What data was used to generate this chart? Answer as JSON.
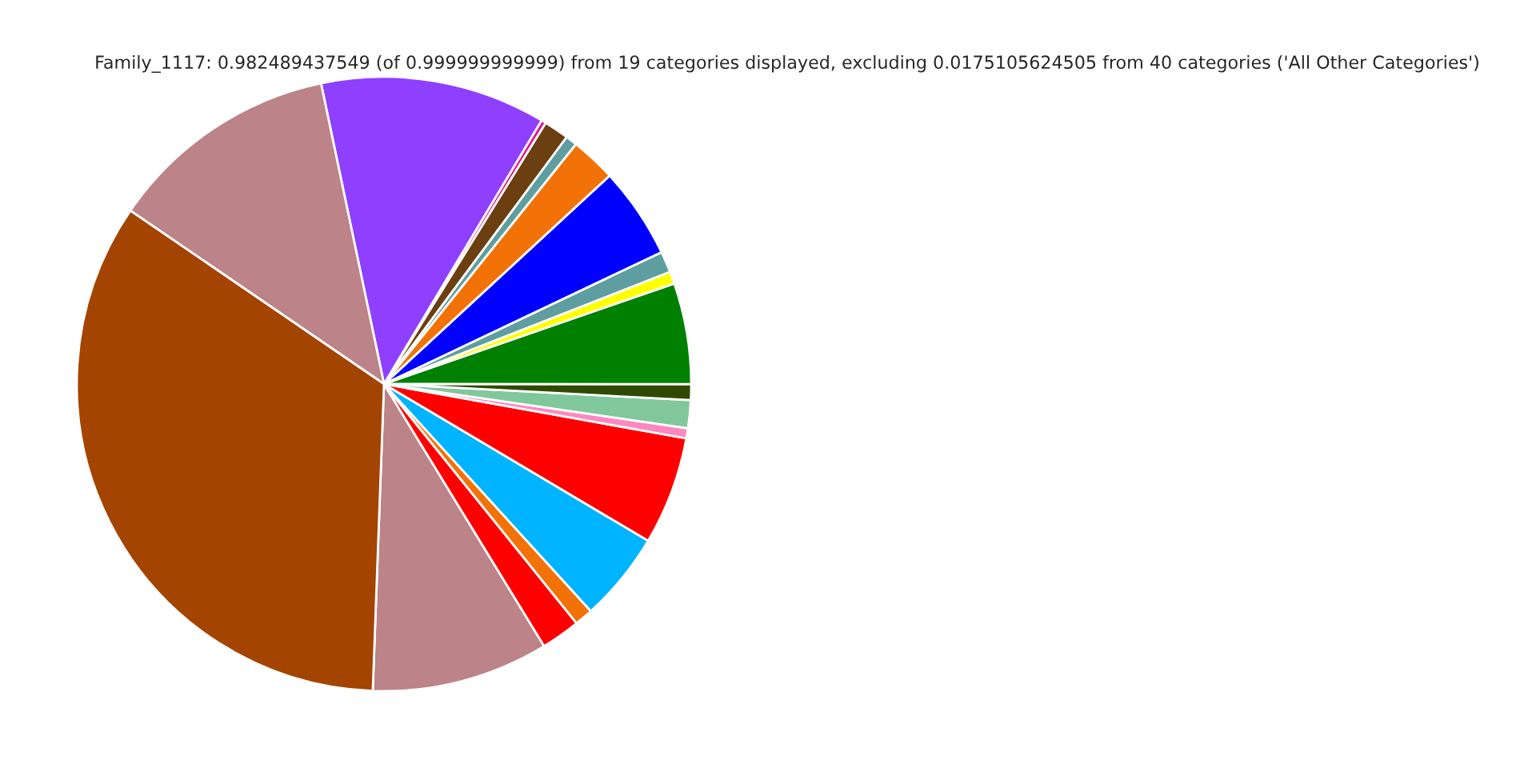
{
  "chart_data": {
    "type": "pie",
    "title": "Family_1117: 0.982489437549 (of 0.999999999999) from 19 categories displayed, excluding 0.0175105624505 from 40 categories ('All Other Categories')",
    "categories": [
      null,
      null,
      null,
      null,
      null,
      null,
      null,
      null,
      null,
      null,
      null,
      null,
      null,
      null,
      null,
      null,
      null,
      null,
      null
    ],
    "values": [
      9.31,
      2.06,
      0.97,
      4.72,
      5.69,
      0.53,
      1.47,
      0.83,
      5.31,
      0.64,
      1.11,
      4.81,
      2.39,
      0.61,
      1.31,
      0.25,
      11.86,
      12.17,
      33.96
    ],
    "colors": [
      "#bc8389",
      "#ff0000",
      "#f37207",
      "#00b4ff",
      "#ff0000",
      "#ff88c0",
      "#80c89c",
      "#2f4a00",
      "#008000",
      "#ffff00",
      "#5f9ea0",
      "#0000ff",
      "#f37207",
      "#5f9ea0",
      "#6b3f10",
      "#e0138c",
      "#8f3fff",
      "#bc8389",
      "#a34400"
    ]
  }
}
